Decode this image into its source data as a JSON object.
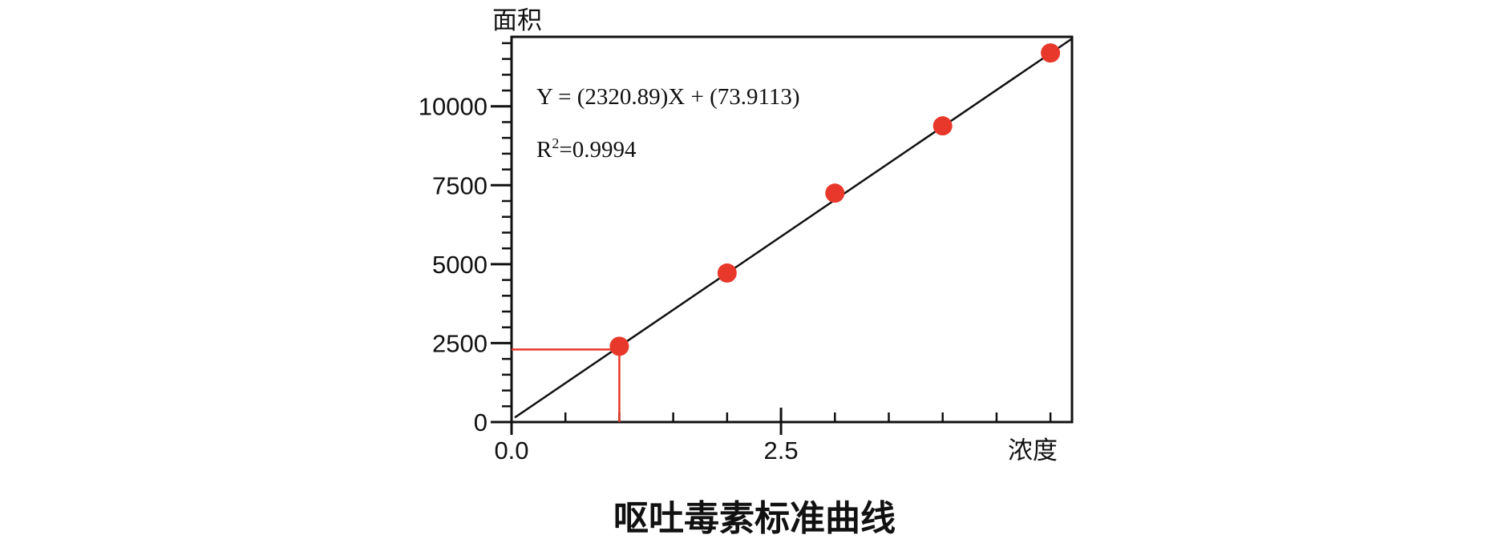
{
  "chart_data": {
    "type": "scatter",
    "title": "呕吐毒素标准曲线",
    "xlabel": "浓度",
    "ylabel": "面积",
    "xlim": [
      0,
      5.2
    ],
    "ylim": [
      0,
      12200
    ],
    "x_ticks": [
      0.0,
      2.5
    ],
    "x_tick_labels": [
      "0.0",
      "2.5"
    ],
    "x_minor_step": 0.5,
    "y_ticks": [
      0,
      2500,
      5000,
      7500,
      10000
    ],
    "y_tick_labels": [
      "0",
      "2500",
      "5000",
      "7500",
      "10000"
    ],
    "y_minor_step": 500,
    "grid": false,
    "points": [
      {
        "x": 1.0,
        "y": 2400
      },
      {
        "x": 2.0,
        "y": 4720
      },
      {
        "x": 3.0,
        "y": 7250
      },
      {
        "x": 4.0,
        "y": 9380
      },
      {
        "x": 5.0,
        "y": 11690
      }
    ],
    "fit": {
      "slope": 2320.89,
      "intercept": 73.9113,
      "equation_label": "Y = (2320.89)X + (73.9113)",
      "r2_prefix": "R",
      "r2_sup": "2",
      "r2_value": "=0.9994"
    },
    "reference": {
      "x": 1.0,
      "y": 2300
    },
    "colors": {
      "points": "#e8382b",
      "fit_line": "#111111",
      "reference": "#e8382b",
      "axes": "#111111"
    }
  }
}
